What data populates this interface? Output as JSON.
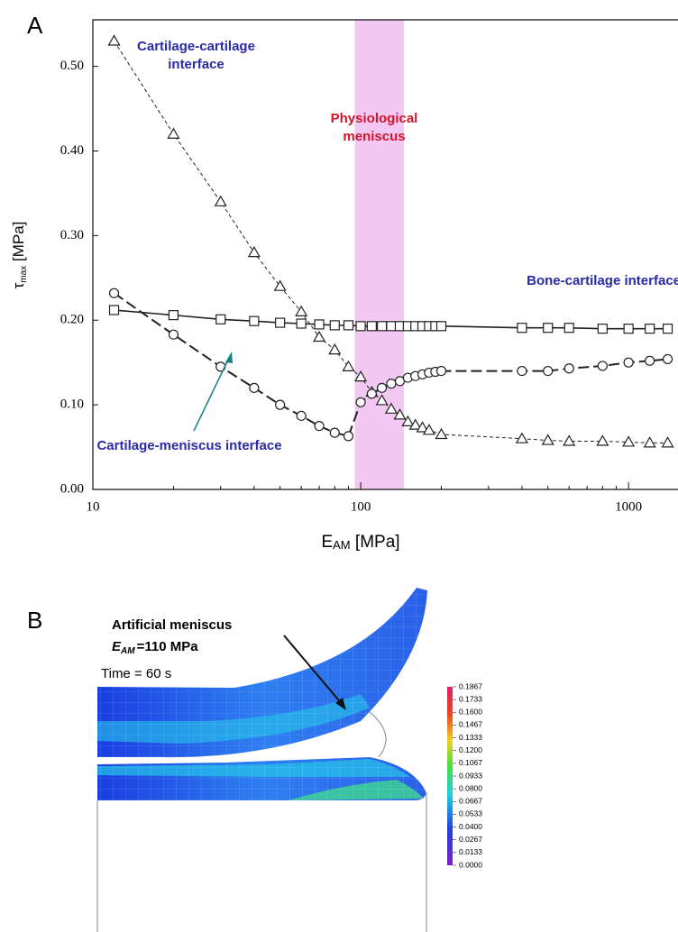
{
  "panel_a_label": "A",
  "chart_data": {
    "type": "line",
    "xlabel": {
      "main": "E",
      "sub": "AM",
      "rest": " [MPa]"
    },
    "ylabel": {
      "main": "τ",
      "sub": "max",
      "rest": " [MPa]"
    },
    "xscale": "log",
    "xlim": [
      10,
      1530
    ],
    "xticks": [
      10,
      100,
      1000
    ],
    "ylim": [
      0,
      0.555
    ],
    "yticks": [
      {
        "value": 0,
        "label": "0.00"
      },
      {
        "value": 0.1,
        "label": "0.10"
      },
      {
        "value": 0.2,
        "label": "0.20"
      },
      {
        "value": 0.3,
        "label": "0.30"
      },
      {
        "value": 0.4,
        "label": "0.40"
      },
      {
        "value": 0.5,
        "label": "0.50"
      }
    ],
    "shaded_region": {
      "range": [
        95,
        145
      ],
      "color": "#f3c8f3",
      "label": "Physiological meniscus",
      "label_color": "#d0142c"
    },
    "series": [
      {
        "name": "Cartilage-cartilage interface",
        "color": "#222222",
        "label_color": "#2a2aa8",
        "marker": "triangle",
        "dash": "4,3",
        "width": 1,
        "x": [
          12,
          20,
          30,
          40,
          50,
          60,
          70,
          80,
          90,
          100,
          110,
          120,
          130,
          140,
          150,
          160,
          170,
          180,
          200,
          400,
          500,
          600,
          800,
          1000,
          1200,
          1400
        ],
        "values": [
          0.53,
          0.42,
          0.34,
          0.28,
          0.24,
          0.21,
          0.18,
          0.165,
          0.145,
          0.133,
          0.115,
          0.105,
          0.095,
          0.088,
          0.08,
          0.076,
          0.073,
          0.07,
          0.065,
          0.06,
          0.058,
          0.057,
          0.057,
          0.056,
          0.055,
          0.055
        ]
      },
      {
        "name": "Bone-cartilage interface",
        "color": "#222222",
        "label_color": "#2a2aa8",
        "marker": "square",
        "dash": "",
        "width": 1.6,
        "x": [
          12,
          20,
          30,
          40,
          50,
          60,
          70,
          80,
          90,
          100,
          110,
          120,
          130,
          140,
          150,
          160,
          170,
          180,
          190,
          200,
          400,
          500,
          600,
          800,
          1000,
          1200,
          1400
        ],
        "values": [
          0.212,
          0.206,
          0.201,
          0.199,
          0.197,
          0.196,
          0.195,
          0.194,
          0.194,
          0.193,
          0.193,
          0.193,
          0.193,
          0.193,
          0.193,
          0.193,
          0.193,
          0.193,
          0.193,
          0.193,
          0.191,
          0.191,
          0.191,
          0.19,
          0.19,
          0.19,
          0.19
        ]
      },
      {
        "name": "Cartilage-meniscus interface",
        "color": "#222222",
        "label_color": "#2a2aa8",
        "marker": "circle",
        "dash": "12,5",
        "width": 2,
        "x": [
          12,
          20,
          30,
          40,
          50,
          60,
          70,
          80,
          90,
          100,
          110,
          120,
          130,
          140,
          150,
          160,
          170,
          180,
          190,
          200,
          400,
          500,
          600,
          800,
          1000,
          1200,
          1400
        ],
        "values": [
          0.232,
          0.183,
          0.145,
          0.12,
          0.1,
          0.087,
          0.075,
          0.067,
          0.063,
          0.103,
          0.113,
          0.12,
          0.125,
          0.128,
          0.132,
          0.134,
          0.136,
          0.138,
          0.139,
          0.14,
          0.14,
          0.14,
          0.143,
          0.146,
          0.15,
          0.152,
          0.154
        ]
      }
    ]
  },
  "panel_b": {
    "label": "B",
    "annotation": {
      "line1": "Artificial meniscus",
      "symbol": "E",
      "subscript": "AM",
      "rest": "=110 MPa"
    },
    "time": "Time = 60 s",
    "colorbar_labels": [
      "0.1867",
      "0.1733",
      "0.1600",
      "0.1467",
      "0.1333",
      "0.1200",
      "0.1067",
      "0.0933",
      "0.0800",
      "0.0667",
      "0.0533",
      "0.0400",
      "0.0267",
      "0.0133",
      "0.0000"
    ]
  }
}
